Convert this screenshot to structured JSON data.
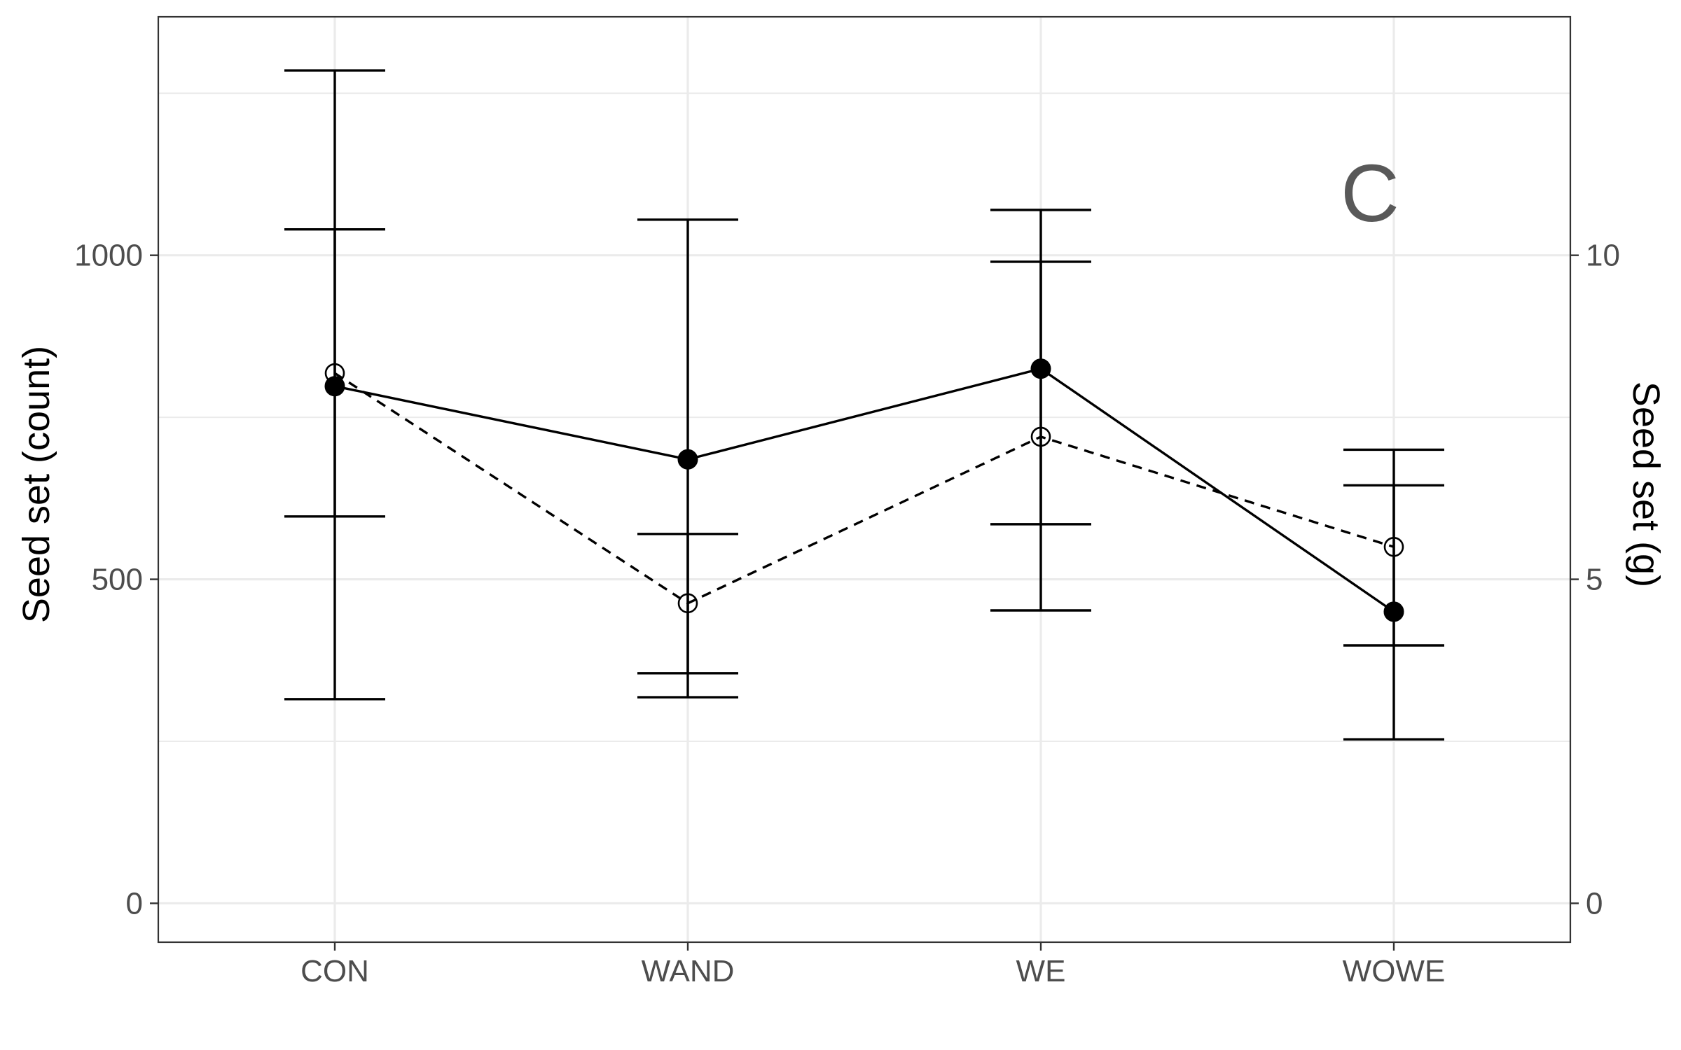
{
  "chart_data": {
    "type": "line",
    "panel_label": "C",
    "categories": [
      "CON",
      "WAND",
      "WE",
      "WOWE"
    ],
    "ylabel": "Seed set (count)",
    "y2label": "Seed set (g)",
    "ylim": [
      -60,
      1368
    ],
    "y2lim": [
      -0.6,
      13.68
    ],
    "yticks": [
      "0",
      "500",
      "1000"
    ],
    "yticks_values": [
      0,
      500,
      1000
    ],
    "y2ticks": [
      "0",
      "5",
      "10"
    ],
    "y2ticks_values": [
      0,
      5,
      10
    ],
    "grid": true,
    "series": [
      {
        "axis": "left",
        "line": "solid",
        "marker": "filled-circle",
        "values": [
          798,
          685,
          825,
          450
        ],
        "error_low": [
          315,
          318,
          452,
          253
        ],
        "error_high": [
          1285,
          1055,
          1070,
          700
        ]
      },
      {
        "axis": "right",
        "line": "dashed",
        "marker": "open-circle",
        "values": [
          8.18,
          4.63,
          7.2,
          5.5
        ],
        "error_low": [
          5.97,
          3.55,
          5.85,
          3.98
        ],
        "error_high": [
          10.4,
          5.7,
          9.9,
          6.45
        ]
      }
    ],
    "colors": {
      "line": "#000000",
      "grid": "#ebebeb",
      "border": "#333333",
      "text": "#4d4d4d"
    }
  }
}
